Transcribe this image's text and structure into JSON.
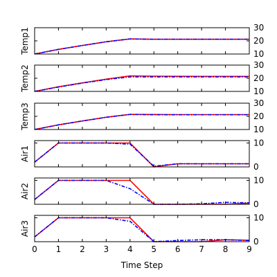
{
  "chart_data": {
    "type": "line",
    "xlabel": "Time Step",
    "x": [
      0,
      1,
      2,
      3,
      4,
      5,
      6,
      7,
      8,
      9
    ],
    "xlim": [
      0,
      9
    ],
    "xticks": [
      0,
      1,
      2,
      3,
      4,
      5,
      6,
      7,
      8,
      9
    ],
    "colors": {
      "solid": "#ff0000",
      "dashdot": "#0000ff"
    },
    "panels": [
      {
        "ylabel": "Temp1",
        "ylim": [
          10,
          30
        ],
        "yticks": [
          10,
          20,
          30
        ],
        "series": [
          {
            "style": "solid",
            "values": [
              10,
              13.5,
              16.5,
              19.3,
              21.5,
              21.2,
              21.2,
              21.2,
              21.2,
              21.2
            ]
          },
          {
            "style": "dashdot",
            "values": [
              10,
              13.5,
              16.5,
              19.3,
              21.5,
              21.2,
              21.2,
              21.2,
              21.2,
              21.2
            ]
          }
        ]
      },
      {
        "ylabel": "Temp2",
        "ylim": [
          10,
          30
        ],
        "yticks": [
          10,
          20,
          30
        ],
        "series": [
          {
            "style": "solid",
            "values": [
              10,
              13.5,
              16.5,
              19.3,
              21.8,
              21.6,
              21.5,
              21.4,
              21.4,
              21.4
            ]
          },
          {
            "style": "dashdot",
            "values": [
              10,
              13.3,
              16.3,
              19.0,
              21.0,
              21.0,
              21.0,
              21.0,
              21.0,
              21.0
            ]
          }
        ]
      },
      {
        "ylabel": "Temp3",
        "ylim": [
          10,
          30
        ],
        "yticks": [
          10,
          20,
          30
        ],
        "series": [
          {
            "style": "solid",
            "values": [
              10,
              13.5,
              16.5,
              19.3,
              21.5,
              21.4,
              21.3,
              21.3,
              21.3,
              21.3
            ]
          },
          {
            "style": "dashdot",
            "values": [
              10,
              13.5,
              16.5,
              19.3,
              21.5,
              21.2,
              21.2,
              21.2,
              21.2,
              21.2
            ]
          }
        ]
      },
      {
        "ylabel": "Air1",
        "ylim": [
          0,
          11
        ],
        "yticks": [
          0,
          10
        ],
        "series": [
          {
            "style": "solid",
            "values": [
              2,
              10,
              10,
              10,
              10,
              0,
              1.3,
              1.3,
              1.3,
              1.3
            ]
          },
          {
            "style": "dashdot",
            "values": [
              2,
              10,
              10,
              10,
              9.5,
              0.3,
              1.3,
              1.3,
              1.3,
              1.3
            ]
          }
        ]
      },
      {
        "ylabel": "Air2",
        "ylim": [
          0,
          11
        ],
        "yticks": [
          0,
          10
        ],
        "series": [
          {
            "style": "solid",
            "values": [
              2,
              10,
              10,
              10,
              10,
              0,
              0,
              0,
              0,
              0.5
            ]
          },
          {
            "style": "dashdot",
            "values": [
              2,
              10,
              10,
              10,
              6.5,
              0,
              0,
              0.2,
              0.8,
              0.6
            ]
          }
        ]
      },
      {
        "ylabel": "Air3",
        "ylim": [
          0,
          11
        ],
        "yticks": [
          0,
          10
        ],
        "series": [
          {
            "style": "solid",
            "values": [
              2,
              10,
              10,
              10,
              10,
              0,
              0,
              0,
              0.8,
              0.6
            ]
          },
          {
            "style": "dashdot",
            "values": [
              2,
              10,
              10,
              10,
              8.5,
              0,
              0.5,
              0.8,
              0.8,
              0.5
            ]
          }
        ]
      }
    ]
  }
}
